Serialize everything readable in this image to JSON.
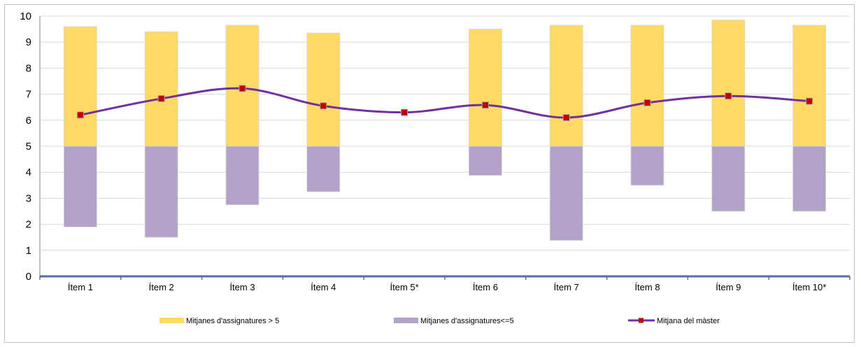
{
  "chart_data": {
    "type": "bar",
    "categories": [
      "Ítem 1",
      "Ítem 2",
      "Ítem 3",
      "Ítem 4",
      "Ítem 5*",
      "Ítem 6",
      "Ítem 7",
      "Ítem 8",
      "Ítem 9",
      "Ítem 10*"
    ],
    "ylim": [
      0,
      10
    ],
    "y_ticks": [
      "0",
      "1",
      "2",
      "3",
      "4",
      "5",
      "6",
      "7",
      "8",
      "9",
      "10"
    ],
    "baseline": 5,
    "grid": true,
    "legend_position": "bottom",
    "series": [
      {
        "name": "Mitjanes d'assignatures > 5",
        "kind": "bar",
        "color": "#ffd966",
        "values": [
          9.6,
          9.4,
          9.65,
          9.35,
          null,
          9.5,
          9.65,
          9.65,
          9.85,
          9.65
        ]
      },
      {
        "name": "Mitjanes d'assignatures<=5",
        "kind": "bar",
        "color": "#b3a2c7",
        "values": [
          1.9,
          1.5,
          2.75,
          3.25,
          null,
          3.88,
          1.38,
          3.5,
          2.5,
          2.5
        ]
      },
      {
        "name": "Mitjana del màster",
        "kind": "line",
        "color": "#7030a0",
        "marker_color": "#c00000",
        "values": [
          6.2,
          6.83,
          7.22,
          6.55,
          6.3,
          6.58,
          6.1,
          6.67,
          6.93,
          6.73
        ]
      }
    ]
  }
}
